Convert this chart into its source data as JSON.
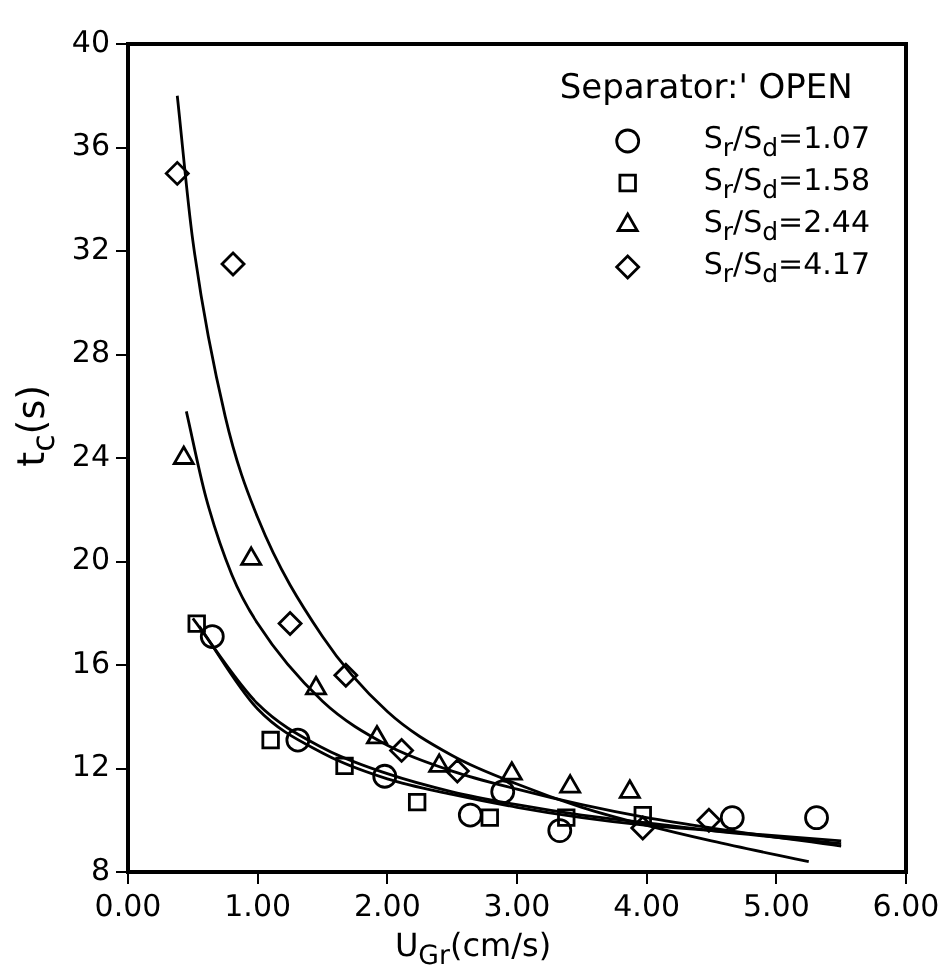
{
  "chart_data": {
    "type": "scatter",
    "xlabel": "U$_{Gr}$(cm/s)",
    "ylabel": "t$_{c}$(s)",
    "legend_title": "Separator:' OPEN",
    "legend": "top right",
    "grid": false,
    "xlim": [
      0,
      6
    ],
    "ylim": [
      8,
      40
    ],
    "xticks": [
      {
        "value": 0,
        "label": "0.00"
      },
      {
        "value": 1,
        "label": "1.00"
      },
      {
        "value": 2,
        "label": "2.00"
      },
      {
        "value": 3,
        "label": "3.00"
      },
      {
        "value": 4,
        "label": "4.00"
      },
      {
        "value": 5,
        "label": "5.00"
      },
      {
        "value": 6,
        "label": "6.00"
      }
    ],
    "yticks": [
      8,
      12,
      16,
      20,
      24,
      28,
      32,
      36,
      40
    ],
    "series": [
      {
        "name": "S$_{r}$/S$_{d}$=1.07",
        "color": "#000000",
        "marker": "circle",
        "x": [
          0.65,
          1.31,
          1.98,
          2.64,
          2.89,
          3.33,
          4.66,
          5.31
        ],
        "values": [
          17.1,
          13.1,
          11.7,
          10.2,
          11.1,
          9.6,
          10.1,
          10.1
        ]
      },
      {
        "name": "S$_{r}$/S$_{d}$=1.58",
        "color": "#000000",
        "marker": "square",
        "x": [
          0.53,
          1.1,
          1.67,
          2.23,
          2.79,
          3.38,
          3.97
        ],
        "values": [
          17.6,
          13.1,
          12.1,
          10.7,
          10.1,
          10.1,
          10.2
        ]
      },
      {
        "name": "S$_{r}$/S$_{d}$=2.44",
        "color": "#000000",
        "marker": "triangle",
        "x": [
          0.43,
          0.95,
          1.45,
          1.92,
          2.4,
          2.96,
          3.41,
          3.87
        ],
        "values": [
          24,
          20.1,
          15.1,
          13.2,
          12.1,
          11.8,
          11.3,
          11.1
        ]
      },
      {
        "name": "S$_{r}$/S$_{d}$=4.17",
        "color": "#000000",
        "marker": "diamond",
        "x": [
          0.38,
          0.81,
          1.25,
          1.68,
          2.11,
          2.54,
          3.97,
          4.48
        ],
        "values": [
          35,
          31.5,
          17.6,
          15.6,
          12.7,
          11.9,
          9.7,
          10
        ]
      },
      {
        "type": "line",
        "color": "#000000",
        "marker": "none",
        "x": [
          0.5,
          1,
          1.5,
          2,
          2.5,
          3,
          3.5,
          4,
          4.5,
          5.5
        ],
        "values": [
          17.8,
          14.5,
          12.8,
          11.8,
          11.1,
          10.6,
          10.2,
          9.9,
          9.6,
          9.1
        ]
      },
      {
        "type": "line",
        "color": "#000000",
        "marker": "none",
        "x": [
          0.55,
          1,
          1.5,
          2,
          2.5,
          3,
          3.5,
          4,
          4.5,
          5.5
        ],
        "values": [
          17.5,
          14.3,
          12.6,
          11.6,
          11,
          10.5,
          10.1,
          9.8,
          9.6,
          9.2
        ]
      },
      {
        "type": "line",
        "color": "#000000",
        "marker": "none",
        "x": [
          0.45,
          0.6,
          0.8,
          1,
          1.5,
          2,
          2.5,
          3,
          3.5,
          4,
          4.5,
          5.5
        ],
        "values": [
          25.8,
          22.5,
          19.5,
          17.6,
          14.6,
          12.9,
          11.9,
          11.2,
          10.6,
          10.1,
          9.7,
          9
        ]
      },
      {
        "type": "line",
        "color": "#000000",
        "marker": "none",
        "x": [
          0.38,
          0.5,
          0.75,
          1,
          1.5,
          2,
          2.5,
          3,
          3.5,
          4,
          4.5,
          5.25
        ],
        "values": [
          38,
          32.4,
          25.6,
          21.7,
          17.1,
          14.2,
          12.5,
          11.4,
          10.5,
          9.8,
          9.2,
          8.4
        ]
      }
    ]
  }
}
